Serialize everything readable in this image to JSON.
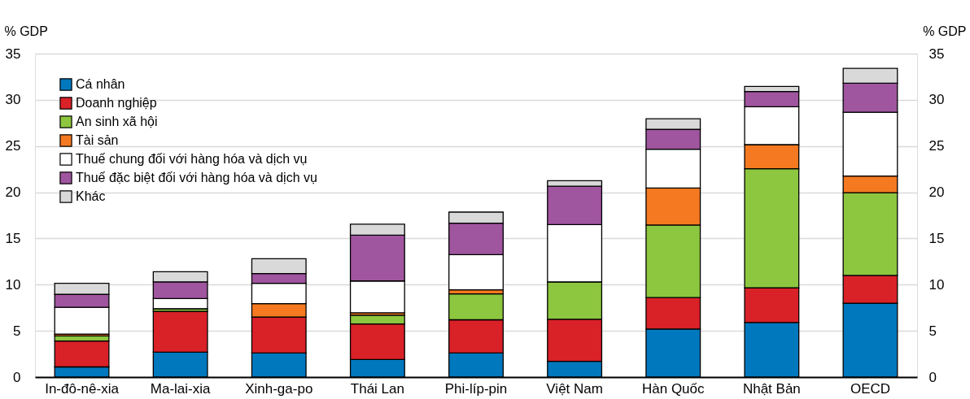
{
  "chart_data": {
    "type": "bar",
    "stacked": true,
    "ylabel": "% GDP",
    "y2label": "% GDP",
    "categories": [
      "In-đô-nê-xia",
      "Ma-lai-xia",
      "Xinh-ga-po",
      "Thái Lan",
      "Phi-líp-pin",
      "Việt Nam",
      "Hàn Quốc",
      "Nhật Bản",
      "OECD"
    ],
    "series": [
      {
        "name": "Cá nhân",
        "color": "#0078be",
        "values": [
          1.1,
          2.7,
          2.6,
          1.9,
          2.6,
          1.7,
          5.2,
          5.9,
          8.0
        ]
      },
      {
        "name": "Doanh nghiệp",
        "color": "#d92128",
        "values": [
          2.8,
          4.4,
          3.9,
          3.85,
          3.6,
          4.55,
          3.4,
          3.75,
          3.0
        ]
      },
      {
        "name": "An sinh xã hội",
        "color": "#8dc63f",
        "values": [
          0.55,
          0.3,
          0,
          0.95,
          2.8,
          4.05,
          7.85,
          12.9,
          8.95
        ]
      },
      {
        "name": "Tài sản",
        "color": "#f47920",
        "values": [
          0.2,
          0,
          1.45,
          0.25,
          0.45,
          0,
          4.0,
          2.6,
          1.8
        ]
      },
      {
        "name": "Thuế chung đối với hàng hóa và dịch vụ",
        "color": "#ffffff",
        "values": [
          2.9,
          1.1,
          2.2,
          3.45,
          3.8,
          6.2,
          4.2,
          4.1,
          6.9
        ]
      },
      {
        "name": "Thuế đặc biệt đối với hàng hóa và dịch vụ",
        "color": "#a0559f",
        "values": [
          1.4,
          1.8,
          1.05,
          4.95,
          3.4,
          4.15,
          2.15,
          1.65,
          3.15
        ]
      },
      {
        "name": "Khác",
        "color": "#d9d9d9",
        "values": [
          1.2,
          1.1,
          1.6,
          1.2,
          1.2,
          0.6,
          1.15,
          0.55,
          1.6
        ]
      }
    ],
    "ylim": [
      0,
      35
    ],
    "yticks": [
      0,
      5,
      10,
      15,
      20,
      25,
      30,
      35
    ],
    "y2lim": [
      0,
      35
    ],
    "y2ticks": [
      0,
      5,
      10,
      15,
      20,
      25,
      30,
      35
    ],
    "grid": "y",
    "legend": "top left"
  }
}
